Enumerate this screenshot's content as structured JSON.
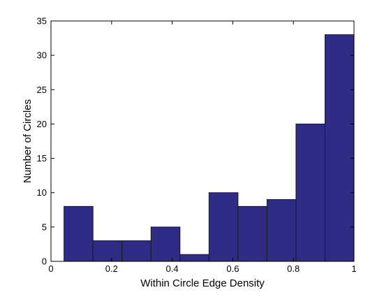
{
  "chart_data": {
    "type": "bar",
    "title": "",
    "xlabel": "Within Circle Edge Density",
    "ylabel": "Number of Circles",
    "xlim": [
      0,
      1
    ],
    "ylim": [
      0,
      35
    ],
    "xticks": [
      0,
      0.2,
      0.4,
      0.6,
      0.8,
      1
    ],
    "xtick_labels": [
      "0",
      "0.2",
      "0.4",
      "0.6",
      "0.8",
      "1"
    ],
    "yticks": [
      0,
      5,
      10,
      15,
      20,
      25,
      30,
      35
    ],
    "ytick_labels": [
      "0",
      "5",
      "10",
      "15",
      "20",
      "25",
      "30",
      "35"
    ],
    "bin_edges": [
      0.043,
      0.1387,
      0.2344,
      0.3301,
      0.4258,
      0.5215,
      0.6172,
      0.7129,
      0.8086,
      0.9043,
      1.0
    ],
    "bin_centers": [
      0.0909,
      0.1866,
      0.2823,
      0.378,
      0.4737,
      0.5694,
      0.6651,
      0.7608,
      0.8565,
      0.9522
    ],
    "values": [
      8,
      3,
      3,
      5,
      1,
      10,
      8,
      9,
      20,
      33
    ],
    "bar_color": "#2f2c86",
    "edge_color": "#1a1a1a",
    "grid": false,
    "legend": "none"
  }
}
